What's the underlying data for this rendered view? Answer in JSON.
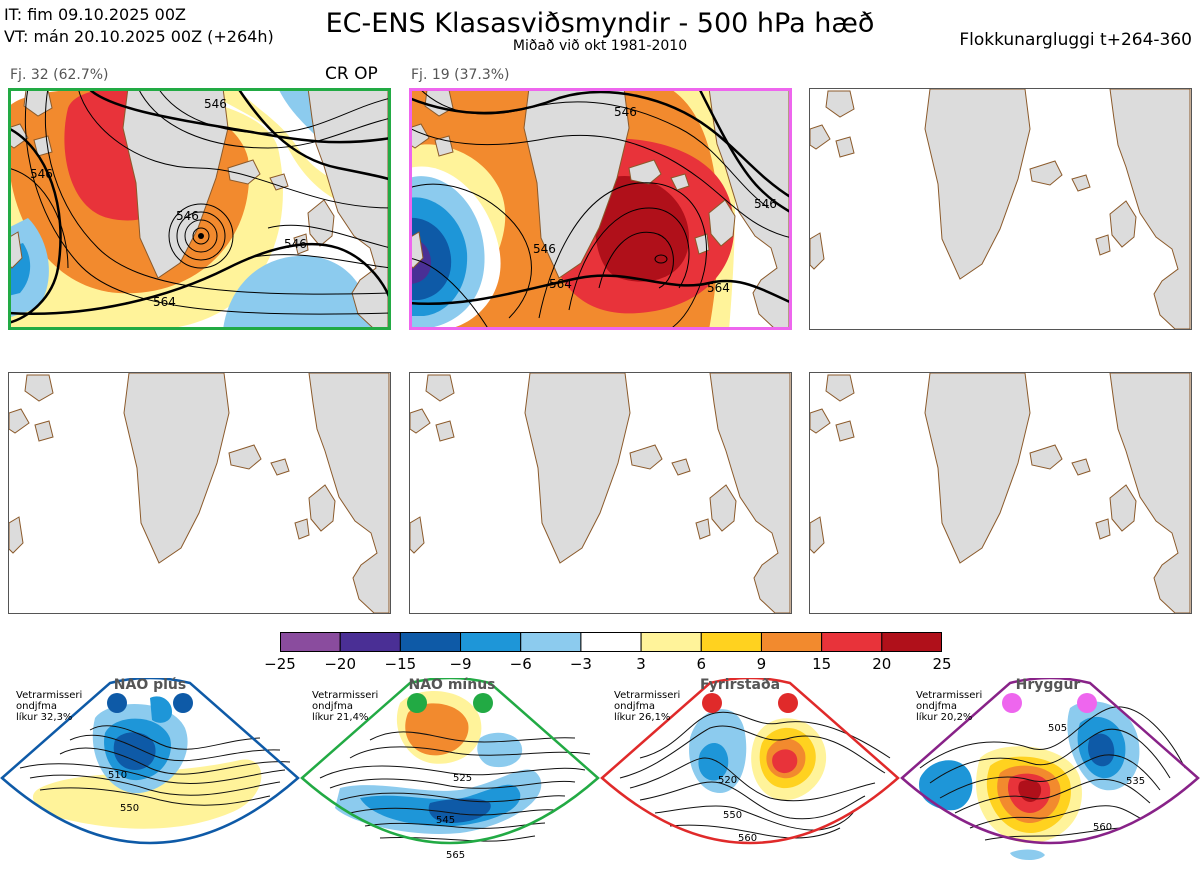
{
  "header": {
    "it_line": "IT: fim 09.10.2025 00Z",
    "vt_line": "VT: mán 20.10.2025 00Z  (+264h)",
    "title": "EC-ENS Klasasviðsmyndir - 500 hPa hæð",
    "subtitle": "Miðað við okt 1981-2010",
    "window": "Flokkunargluggi t+264-360"
  },
  "panels": [
    {
      "label": "Fj. 32 (62.7%)",
      "marker": "CR OP",
      "border_color": "#22aa44"
    },
    {
      "label": "Fj. 19 (37.3%)",
      "marker": "",
      "border_color": "#ee66ee"
    },
    {
      "label": "",
      "marker": "",
      "border_color": ""
    },
    {
      "label": "",
      "marker": "",
      "border_color": ""
    },
    {
      "label": "",
      "marker": "",
      "border_color": ""
    },
    {
      "label": "",
      "marker": "",
      "border_color": ""
    }
  ],
  "contour_labels": {
    "panel1": [
      "546",
      "546",
      "546",
      "546",
      "564"
    ],
    "panel2": [
      "546",
      "546",
      "546",
      "564",
      "564"
    ]
  },
  "colorbar": {
    "ticks": [
      "−25",
      "−20",
      "−15",
      "−9",
      "−6",
      "−3",
      "3",
      "6",
      "9",
      "15",
      "20",
      "25"
    ],
    "colors": [
      "#8a4c9e",
      "#4a2f95",
      "#0e5aa7",
      "#1e96d8",
      "#8ccbee",
      "#ffffff",
      "#fff39a",
      "#ffd21f",
      "#f28a2e",
      "#e8333a",
      "#b0101a"
    ]
  },
  "chart_data": {
    "type": "heatmap",
    "title": "EC-ENS Klasasviðsmyndir - 500 hPa hæð",
    "subtitle": "Miðað við okt 1981-2010",
    "colorbar_levels": [
      -25,
      -20,
      -15,
      -9,
      -6,
      -3,
      3,
      6,
      9,
      15,
      20,
      25
    ],
    "clusters": [
      {
        "name": "Fj. 32",
        "percent": 62.7,
        "contours": [
          546,
          564
        ]
      },
      {
        "name": "Fj. 19",
        "percent": 37.3,
        "contours": [
          546,
          564
        ]
      }
    ]
  },
  "regimes": [
    {
      "name": "NAO plús",
      "season": "Vetrarmisseri",
      "distribution": "ondjfma",
      "prob": "líkur 32,3%",
      "color": "#0e5aa7",
      "labels": [
        "510",
        "550"
      ]
    },
    {
      "name": "NAO mínus",
      "season": "Vetrarmisseri",
      "distribution": "ondjfma",
      "prob": "líkur 21,4%",
      "color": "#22aa44",
      "labels": [
        "525",
        "545",
        "565"
      ]
    },
    {
      "name": "Fyrirstaða",
      "season": "Vetrarmisseri",
      "distribution": "ondjfma",
      "prob": "líkur 26,1%",
      "color": "#e02a2a",
      "labels": [
        "520",
        "550",
        "560"
      ]
    },
    {
      "name": "Hryggur",
      "season": "Vetrarmisseri",
      "distribution": "ondjfma",
      "prob": "líkur 20,2%",
      "color": "#ee66ee",
      "labels": [
        "505",
        "535",
        "560"
      ]
    }
  ]
}
